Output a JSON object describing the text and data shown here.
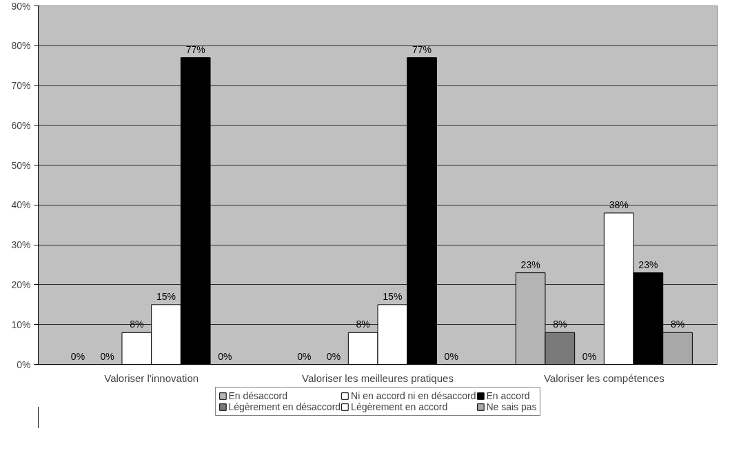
{
  "chart_data": {
    "type": "bar",
    "categories": [
      "Valoriser l'innovation",
      "Valoriser les meilleures pratiques",
      "Valoriser les compétences"
    ],
    "series": [
      {
        "name": "En désaccord",
        "color": "#b4b4b4",
        "values": [
          0,
          0,
          23
        ],
        "value_labels": [
          "0%",
          "0%",
          "23%"
        ]
      },
      {
        "name": "Légèrement en désaccord",
        "color": "#7a7a7a",
        "values": [
          0,
          0,
          8
        ],
        "value_labels": [
          "0%",
          "0%",
          "8%"
        ]
      },
      {
        "name": "Ni en accord ni en désaccord",
        "color": "#ffffff",
        "values": [
          8,
          8,
          0
        ],
        "value_labels": [
          "8%",
          "8%",
          "0%"
        ]
      },
      {
        "name": "Légèrement en accord",
        "color": "#ffffff",
        "values": [
          15,
          15,
          38
        ],
        "value_labels": [
          "15%",
          "15%",
          "38%"
        ]
      },
      {
        "name": "En accord",
        "color": "#000000",
        "values": [
          77,
          77,
          23
        ],
        "value_labels": [
          "77%",
          "77%",
          "23%"
        ]
      },
      {
        "name": "Ne sais pas",
        "color": "#a8a8a8",
        "values": [
          0,
          0,
          8
        ],
        "value_labels": [
          "0%",
          "0%",
          "8%"
        ]
      }
    ],
    "ylim": [
      0,
      90
    ],
    "yticks": [
      {
        "value": 0,
        "label": "0%"
      },
      {
        "value": 10,
        "label": "10%"
      },
      {
        "value": 20,
        "label": "20%"
      },
      {
        "value": 30,
        "label": "30%"
      },
      {
        "value": 40,
        "label": "40%"
      },
      {
        "value": 50,
        "label": "50%"
      },
      {
        "value": 60,
        "label": "60%"
      },
      {
        "value": 70,
        "label": "70%"
      },
      {
        "value": 80,
        "label": "80%"
      },
      {
        "value": 90,
        "label": "90%"
      }
    ],
    "grid": "y",
    "legend": "bottom"
  }
}
